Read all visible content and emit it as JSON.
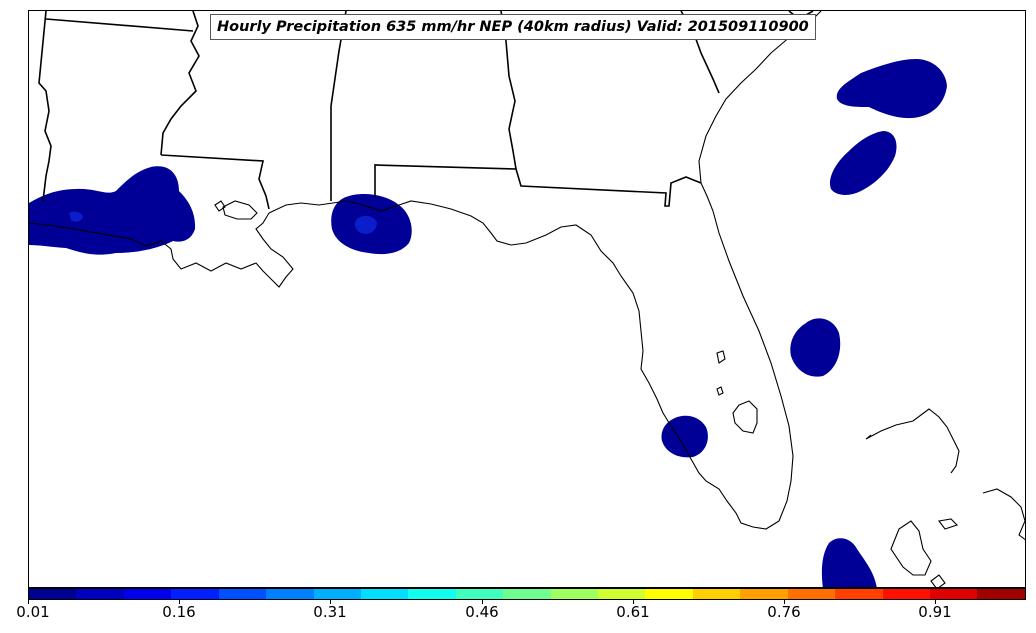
{
  "title": "Hourly Precipitation 635 mm/hr NEP (40km radius) Valid: 201509110900",
  "colorbar": {
    "colors": [
      "#00008f",
      "#0000bf",
      "#0000ef",
      "#0020ff",
      "#0050ff",
      "#0080ff",
      "#00afff",
      "#00dfff",
      "#10ffef",
      "#40ffbf",
      "#70ff8f",
      "#9fff60",
      "#cfff30",
      "#ffff00",
      "#ffcf00",
      "#ff9f00",
      "#ff7000",
      "#ff4000",
      "#ff1000",
      "#df0000",
      "#9f0000"
    ],
    "tick_labels": [
      "0.01",
      "0.16",
      "0.31",
      "0.46",
      "0.61",
      "0.76",
      "0.91"
    ]
  },
  "map_colors": {
    "precip_fill": "#000096",
    "precip_core": "#0a1ecc",
    "boundary": "#000000"
  }
}
